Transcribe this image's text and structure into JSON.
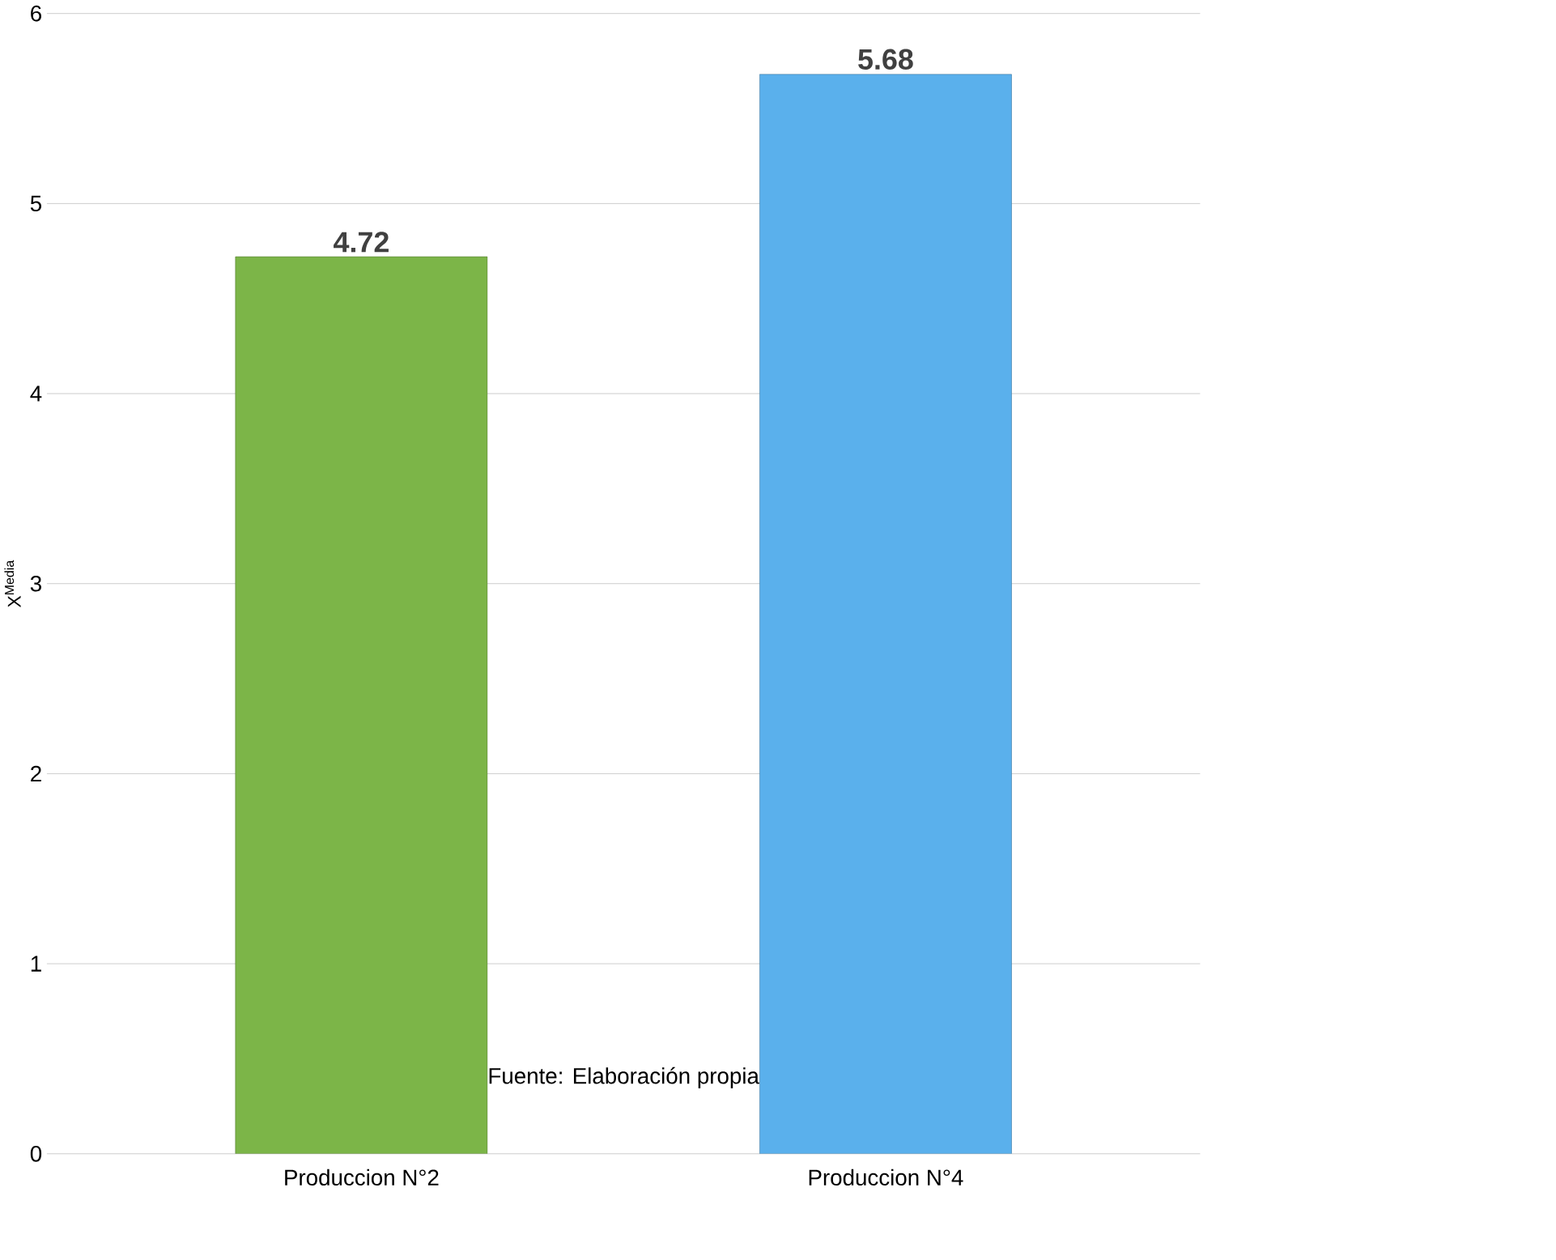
{
  "chart_data": {
    "type": "bar",
    "ylabel": "X$^{Media}$",
    "categories": [
      "Produccion N°2",
      "Produccion N°4"
    ],
    "values": [
      4.72,
      5.68
    ],
    "colors": [
      "#7cb548",
      "#5ab0ec"
    ],
    "ylim": [
      0,
      6
    ],
    "yticks": [
      0,
      1,
      2,
      3,
      4,
      5,
      6
    ],
    "grid": "y",
    "data_labels": true,
    "annotations": [
      "Fuente: Elaboración propia"
    ]
  }
}
